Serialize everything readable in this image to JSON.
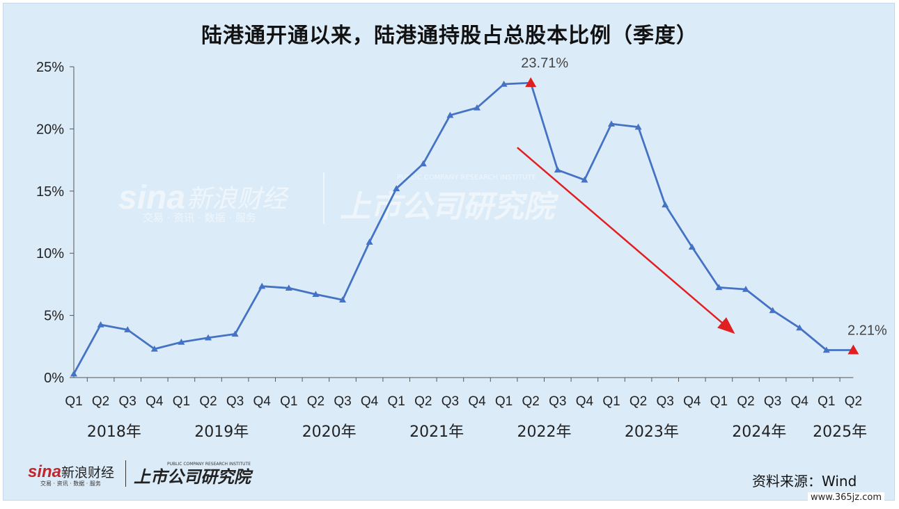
{
  "title": "陆港通开通以来，陆港通持股占总股本比例（季度）",
  "source": "资料来源：Wind",
  "watermark": {
    "brand": "sina",
    "brand_cn": "新浪财经",
    "brand_sub": "交易 · 资讯 · 数据 · 服务",
    "institute": "上市公司研究院",
    "institute_en": "PUBLIC COMPANY RESEARCH INSTITUTE"
  },
  "site_watermark": "www.365jz.com",
  "colors": {
    "line": "#4472c4",
    "highlight": "#e02020",
    "background": "#dcebf8"
  },
  "chart_data": {
    "type": "line",
    "title": "陆港通开通以来，陆港通持股占总股本比例（季度）",
    "quarters": [
      "Q1",
      "Q2",
      "Q3",
      "Q4",
      "Q1",
      "Q2",
      "Q3",
      "Q4",
      "Q1",
      "Q2",
      "Q3",
      "Q4",
      "Q1",
      "Q2",
      "Q3",
      "Q4",
      "Q1",
      "Q2",
      "Q3",
      "Q4",
      "Q1",
      "Q2",
      "Q3",
      "Q4",
      "Q1",
      "Q2",
      "Q3",
      "Q4",
      "Q1",
      "Q2"
    ],
    "years": [
      {
        "label": "2018年",
        "start": 0,
        "end": 3
      },
      {
        "label": "2019年",
        "start": 4,
        "end": 7
      },
      {
        "label": "2020年",
        "start": 8,
        "end": 11
      },
      {
        "label": "2021年",
        "start": 12,
        "end": 15
      },
      {
        "label": "2022年",
        "start": 16,
        "end": 19
      },
      {
        "label": "2023年",
        "start": 20,
        "end": 23
      },
      {
        "label": "2024年",
        "start": 24,
        "end": 27
      },
      {
        "label": "2025年",
        "start": 28,
        "end": 29
      }
    ],
    "values": [
      0.3,
      4.25,
      3.85,
      2.3,
      2.85,
      3.2,
      3.5,
      7.35,
      7.2,
      6.7,
      6.25,
      10.9,
      15.2,
      17.2,
      21.1,
      21.7,
      23.6,
      23.71,
      16.7,
      15.9,
      20.4,
      20.15,
      13.9,
      10.5,
      7.25,
      7.1,
      5.4,
      4.0,
      2.21,
      2.21
    ],
    "highlight_indices": [
      17,
      29
    ],
    "annotations": [
      {
        "index": 17,
        "text": "23.71%"
      },
      {
        "index": 29,
        "text": "2.21%"
      }
    ],
    "trend_arrow": {
      "from": {
        "index": 16.5,
        "value": 18.5
      },
      "to": {
        "index": 24.5,
        "value": 3.7
      }
    },
    "ylim": [
      0,
      25
    ],
    "yticks": [
      0,
      5,
      10,
      15,
      20,
      25
    ],
    "ytick_labels": [
      "0%",
      "5%",
      "10%",
      "15%",
      "20%",
      "25%"
    ],
    "grid": false,
    "legend": "none"
  }
}
